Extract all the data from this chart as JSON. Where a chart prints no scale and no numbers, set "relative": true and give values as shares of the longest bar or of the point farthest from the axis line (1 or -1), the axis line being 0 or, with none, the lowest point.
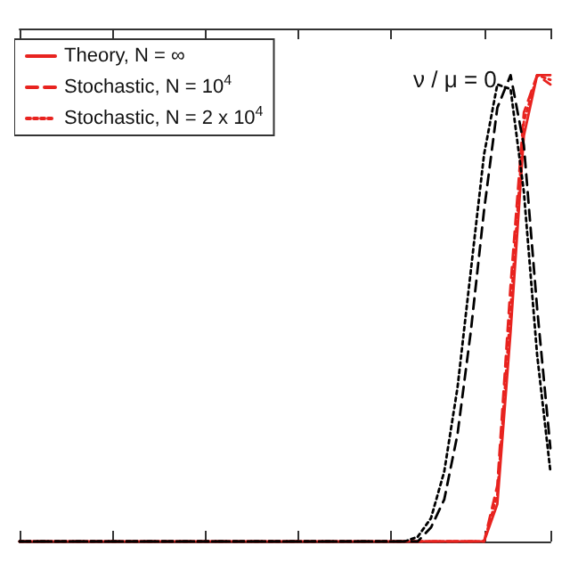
{
  "chart_data": {
    "type": "line",
    "relative": true,
    "marker": "none",
    "legend": "top left",
    "grid": false,
    "annotations": [
      "ν / μ = 0"
    ],
    "categories": [
      null,
      null,
      null,
      null,
      null,
      null,
      null,
      null,
      null,
      null,
      null,
      null,
      null,
      null,
      null,
      null,
      null,
      null,
      null,
      null,
      null,
      null,
      null,
      null,
      null,
      null,
      null,
      null,
      null,
      null,
      null,
      null,
      null,
      null,
      null,
      null,
      null,
      null,
      null,
      null,
      null
    ],
    "series": [
      {
        "name": "Theory, N = ∞",
        "color": "#e8231f",
        "line_style": "solid",
        "values": [
          0,
          0,
          0,
          0,
          0,
          0,
          0,
          0,
          0,
          0,
          0,
          0,
          0,
          0,
          0,
          0,
          0,
          0,
          0,
          0,
          0,
          0,
          0,
          0,
          0,
          0,
          0,
          0,
          0,
          0,
          0,
          0,
          0,
          0,
          0,
          0,
          0.08,
          0.45,
          0.87,
          1.0,
          1.0
        ]
      },
      {
        "name": "Stochastic, N = 10$^{4}$",
        "color": "#e8231f",
        "line_style": "dashed",
        "values": [
          0,
          0,
          0,
          0,
          0,
          0,
          0,
          0,
          0,
          0,
          0,
          0,
          0,
          0,
          0,
          0,
          0,
          0,
          0,
          0,
          0,
          0,
          0,
          0,
          0,
          0,
          0,
          0,
          0,
          0,
          0,
          0,
          0,
          0,
          0,
          0,
          0.12,
          0.55,
          0.92,
          1.0,
          0.98
        ]
      },
      {
        "name": "Stochastic, N = 2 x 10$^{4}$",
        "color": "#e8231f",
        "line_style": "dotted",
        "values": [
          0,
          0,
          0,
          0,
          0,
          0,
          0,
          0,
          0,
          0,
          0,
          0,
          0,
          0,
          0,
          0,
          0,
          0,
          0,
          0,
          0,
          0,
          0,
          0,
          0,
          0,
          0,
          0,
          0,
          0,
          0,
          0,
          0,
          0,
          0,
          0,
          0.1,
          0.5,
          0.9,
          1.0,
          0.99
        ]
      },
      {
        "color": "#000000",
        "line_style": "dotted",
        "values": [
          0,
          0,
          0,
          0,
          0,
          0,
          0,
          0,
          0,
          0,
          0,
          0,
          0,
          0,
          0,
          0,
          0,
          0,
          0,
          0,
          0,
          0,
          0,
          0,
          0,
          0,
          0,
          0,
          0,
          0,
          0.01,
          0.05,
          0.15,
          0.33,
          0.58,
          0.83,
          0.98,
          0.97,
          0.75,
          0.4,
          0.15
        ]
      },
      {
        "color": "#000000",
        "line_style": "dashed",
        "values": [
          0,
          0,
          0,
          0,
          0,
          0,
          0,
          0,
          0,
          0,
          0,
          0,
          0,
          0,
          0,
          0,
          0,
          0,
          0,
          0,
          0,
          0,
          0,
          0,
          0,
          0,
          0,
          0,
          0,
          0,
          0,
          0.03,
          0.09,
          0.23,
          0.45,
          0.71,
          0.93,
          1.0,
          0.85,
          0.5,
          0.2
        ]
      }
    ]
  }
}
